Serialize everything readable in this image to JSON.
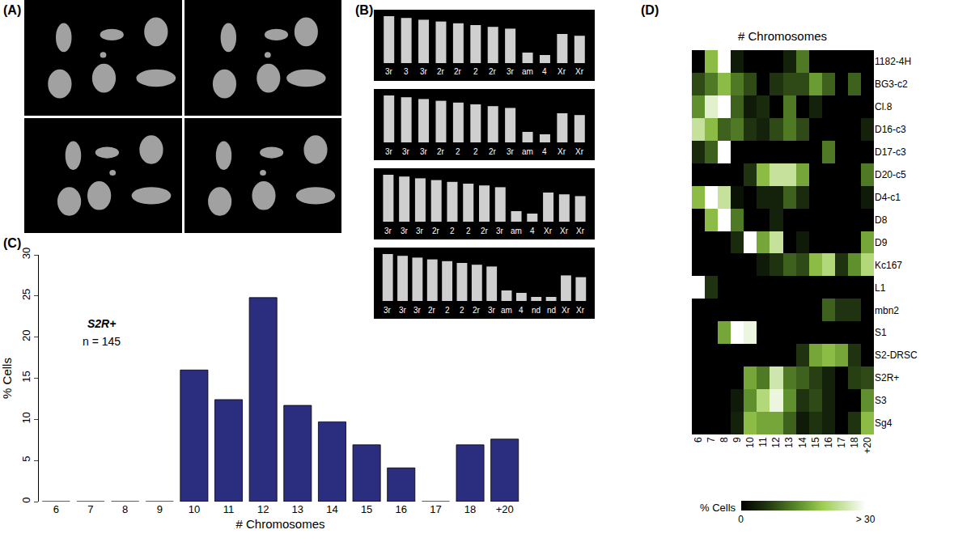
{
  "panel_labels": [
    "(A)",
    "(B)",
    "(C)",
    "(D)"
  ],
  "karyotypes": [
    [
      "3r",
      "3",
      "3r",
      "2r",
      "2r",
      "2",
      "2r",
      "3r",
      "am",
      "4",
      "Xr",
      "Xr"
    ],
    [
      "3r",
      "3r",
      "3r",
      "2r",
      "2",
      "2",
      "2r",
      "3r",
      "am",
      "4",
      "Xr",
      "Xr"
    ],
    [
      "3r",
      "3r",
      "3r",
      "2r",
      "2",
      "2",
      "2r",
      "3r",
      "am",
      "4",
      "Xr",
      "Xr",
      "Xr"
    ],
    [
      "3r",
      "3r",
      "3r",
      "2r",
      "2",
      "2",
      "2r",
      "3r",
      "am",
      "4",
      "nd",
      "nd",
      "Xr",
      "Xr"
    ]
  ],
  "chart_data": [
    {
      "type": "bar",
      "annotations": [
        "S2R+",
        "n = 145"
      ],
      "x_label": "# Chromosomes",
      "y_label": "% Cells",
      "categories": [
        "6",
        "7",
        "8",
        "9",
        "10",
        "11",
        "12",
        "13",
        "14",
        "15",
        "16",
        "17",
        "18",
        "+20"
      ],
      "values": [
        0,
        0,
        0,
        0,
        16,
        12.4,
        24.8,
        11.7,
        9.7,
        6.9,
        4.1,
        0,
        6.9,
        7.6
      ],
      "color": "#2b2d7f",
      "ylim": [
        0,
        30
      ],
      "yticks": [
        0,
        5,
        10,
        15,
        20,
        25,
        30
      ],
      "grid": false
    },
    {
      "type": "heatmap",
      "title": "# Chromosomes",
      "x": [
        "6",
        "7",
        "8",
        "9",
        "10",
        "11",
        "12",
        "13",
        "14",
        "15",
        "16",
        "17",
        "18",
        "+20"
      ],
      "y": [
        "1182-4H",
        "BG3-c2",
        "Cl.8",
        "D16-c3",
        "D17-c3",
        "D20-c5",
        "D4-c1",
        "D8",
        "D9",
        "Kc167",
        "L1",
        "mbn2",
        "S1",
        "S2-DRSC",
        "S2R+",
        "S3",
        "Sg4"
      ],
      "cells": [
        [
          0,
          18,
          32,
          3,
          0,
          0,
          0,
          4,
          12,
          0,
          0,
          0,
          0,
          0
        ],
        [
          8,
          12,
          18,
          12,
          8,
          0,
          6,
          8,
          8,
          15,
          10,
          0,
          10,
          0
        ],
        [
          14,
          27,
          32,
          10,
          3,
          5,
          0,
          12,
          0,
          4,
          0,
          0,
          0,
          0
        ],
        [
          24,
          18,
          10,
          12,
          6,
          4,
          8,
          12,
          8,
          0,
          0,
          0,
          0,
          4
        ],
        [
          5,
          10,
          32,
          0,
          0,
          0,
          0,
          0,
          0,
          0,
          12,
          0,
          0,
          0
        ],
        [
          0,
          0,
          0,
          0,
          6,
          18,
          24,
          24,
          16,
          0,
          0,
          0,
          0,
          12
        ],
        [
          18,
          32,
          24,
          2,
          0,
          4,
          4,
          10,
          5,
          0,
          0,
          0,
          0,
          3
        ],
        [
          0,
          18,
          30,
          12,
          0,
          0,
          4,
          0,
          0,
          0,
          0,
          0,
          0,
          0
        ],
        [
          0,
          0,
          0,
          5,
          32,
          16,
          24,
          0,
          3,
          0,
          0,
          0,
          0,
          16
        ],
        [
          0,
          0,
          0,
          0,
          0,
          3,
          6,
          10,
          8,
          18,
          22,
          6,
          14,
          22
        ],
        [
          32,
          6,
          0,
          0,
          0,
          0,
          0,
          0,
          0,
          0,
          0,
          0,
          0,
          0
        ],
        [
          0,
          0,
          0,
          0,
          0,
          0,
          0,
          0,
          0,
          0,
          10,
          6,
          6,
          0
        ],
        [
          0,
          0,
          16,
          32,
          28,
          0,
          0,
          0,
          0,
          0,
          0,
          0,
          0,
          0
        ],
        [
          0,
          0,
          0,
          0,
          0,
          0,
          0,
          0,
          6,
          16,
          18,
          16,
          6,
          0
        ],
        [
          0,
          0,
          0,
          0,
          16,
          12,
          25,
          12,
          10,
          7,
          4,
          0,
          7,
          8
        ],
        [
          0,
          0,
          0,
          3,
          14,
          22,
          28,
          14,
          6,
          8,
          4,
          0,
          0,
          14
        ],
        [
          0,
          0,
          0,
          4,
          18,
          16,
          16,
          10,
          3,
          6,
          4,
          0,
          6,
          18
        ]
      ],
      "colorbar": {
        "title": "% Cells",
        "range": [
          0,
          30
        ],
        "ticks": [
          0,
          {
            "value": 30,
            "label": "> 30"
          }
        ]
      }
    }
  ]
}
